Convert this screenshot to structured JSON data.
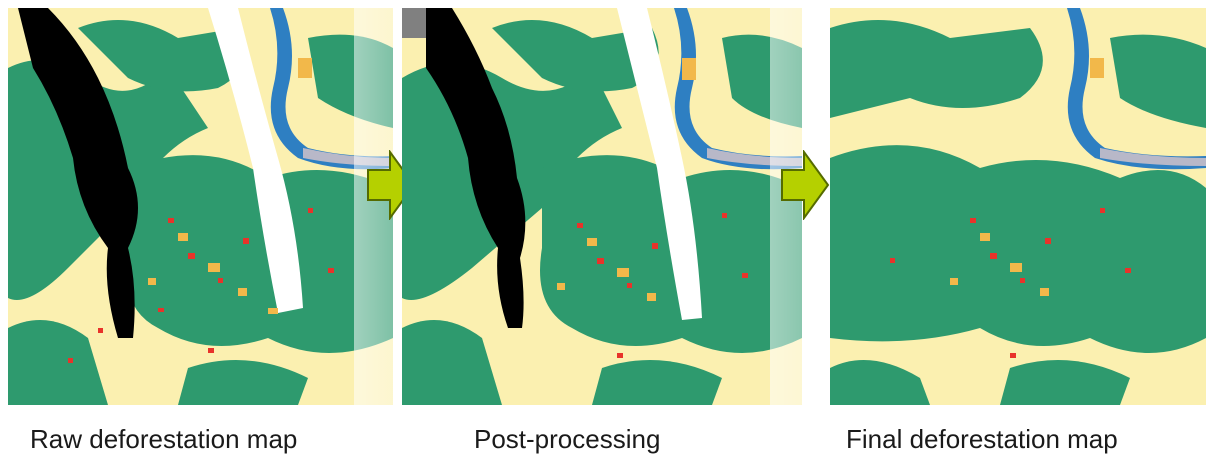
{
  "panels": [
    {
      "label": "Raw deforestation map"
    },
    {
      "label": "Post-processing"
    },
    {
      "label": "Final deforestation map"
    }
  ],
  "arrows": [
    {
      "icon": "right-arrow-icon",
      "color": "#b5d000"
    },
    {
      "icon": "right-arrow-icon",
      "color": "#b5d000"
    }
  ],
  "legend_colors": {
    "forest": "#2e9a6e",
    "non_forest": "#fbf0b0",
    "deforestation": "#e8332a",
    "degradation": "#f2b84a",
    "river": "#2e7fc2",
    "no_data_black": "#000000",
    "no_data_white": "#ffffff",
    "river_bank": "#b8b8c8"
  }
}
